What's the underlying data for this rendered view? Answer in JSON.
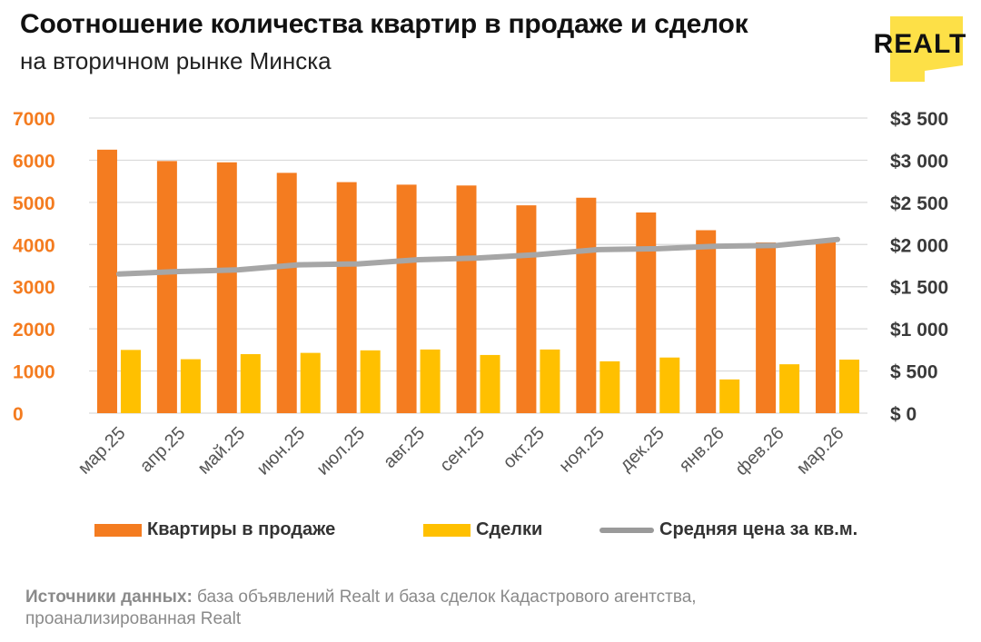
{
  "header": {
    "title": "Соотношение количества квартир в продаже и сделок",
    "subtitle": "на вторичном рынке Минска"
  },
  "logo": {
    "text": "REALT",
    "color": "#fde047"
  },
  "chart_data": {
    "type": "bar",
    "categories": [
      "мар.25",
      "апр.25",
      "май.25",
      "июн.25",
      "июл.25",
      "авг.25",
      "сен.25",
      "окт.25",
      "ноя.25",
      "дек.25",
      "янв.26",
      "фев.26",
      "мар.26"
    ],
    "series": [
      {
        "name": "Квартиры в продаже",
        "type": "bar",
        "axis": "left",
        "color": "#f47c20",
        "values": [
          6250,
          5980,
          5950,
          5700,
          5480,
          5420,
          5400,
          4930,
          5110,
          4760,
          4340,
          4050,
          4100
        ]
      },
      {
        "name": "Сделки",
        "type": "bar",
        "axis": "left",
        "color": "#ffc000",
        "values": [
          1500,
          1280,
          1400,
          1430,
          1490,
          1510,
          1380,
          1510,
          1230,
          1320,
          800,
          1160,
          1270
        ]
      },
      {
        "name": "Средняя цена за кв.м.",
        "type": "line",
        "axis": "right",
        "color": "#a6a6a6",
        "values": [
          1650,
          1680,
          1700,
          1760,
          1770,
          1820,
          1840,
          1880,
          1940,
          1950,
          1980,
          1990,
          2060
        ]
      }
    ],
    "y_left": {
      "ylim": [
        0,
        7000
      ],
      "ticks": [
        "0",
        "1000",
        "2000",
        "3000",
        "4000",
        "5000",
        "6000",
        "7000"
      ],
      "color": "#f47c20"
    },
    "y_right": {
      "ylim": [
        0,
        3500
      ],
      "ticks": [
        "$ 0",
        "$ 500",
        "$1 000",
        "$1 500",
        "$2 000",
        "$2 500",
        "$3 000",
        "$3 500"
      ],
      "color": "#3a3a3a"
    },
    "grid": true,
    "legend_position": "bottom"
  },
  "source": {
    "label": "Источники данных:",
    "text": " база объявлений Realt и база сделок Кадастрового агентства, проанализированная Realt"
  }
}
